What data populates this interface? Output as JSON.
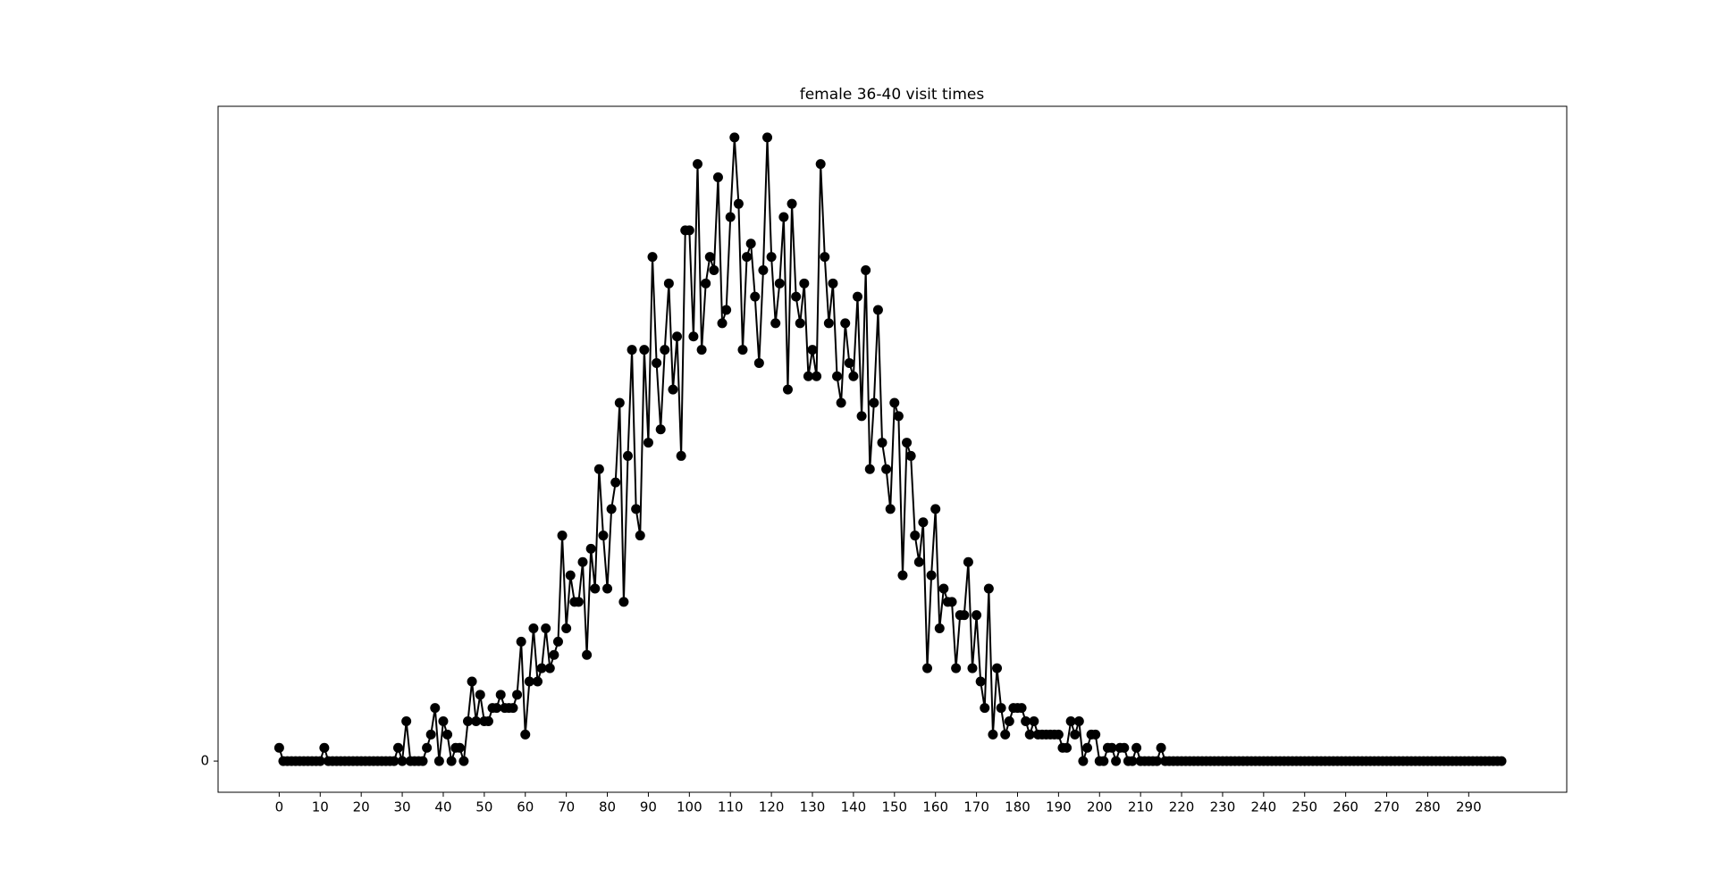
{
  "chart_data": {
    "type": "line",
    "title": "female 36-40 visit times",
    "x": [
      0,
      1,
      2,
      3,
      4,
      5,
      6,
      7,
      8,
      9,
      10,
      11,
      12,
      13,
      14,
      15,
      16,
      17,
      18,
      19,
      20,
      21,
      22,
      23,
      24,
      25,
      26,
      27,
      28,
      29,
      30,
      31,
      32,
      33,
      34,
      35,
      36,
      37,
      38,
      39,
      40,
      41,
      42,
      43,
      44,
      45,
      46,
      47,
      48,
      49,
      50,
      51,
      52,
      53,
      54,
      55,
      56,
      57,
      58,
      59,
      60,
      61,
      62,
      63,
      64,
      65,
      66,
      67,
      68,
      69,
      70,
      71,
      72,
      73,
      74,
      75,
      76,
      77,
      78,
      79,
      80,
      81,
      82,
      83,
      84,
      85,
      86,
      87,
      88,
      89,
      90,
      91,
      92,
      93,
      94,
      95,
      96,
      97,
      98,
      99,
      100,
      101,
      102,
      103,
      104,
      105,
      106,
      107,
      108,
      109,
      110,
      111,
      112,
      113,
      114,
      115,
      116,
      117,
      118,
      119,
      120,
      121,
      122,
      123,
      124,
      125,
      126,
      127,
      128,
      129,
      130,
      131,
      132,
      133,
      134,
      135,
      136,
      137,
      138,
      139,
      140,
      141,
      142,
      143,
      144,
      145,
      146,
      147,
      148,
      149,
      150,
      151,
      152,
      153,
      154,
      155,
      156,
      157,
      158,
      159,
      160,
      161,
      162,
      163,
      164,
      165,
      166,
      167,
      168,
      169,
      170,
      171,
      172,
      173,
      174,
      175,
      176,
      177,
      178,
      179,
      180,
      181,
      182,
      183,
      184,
      185,
      186,
      187,
      188,
      189,
      190,
      191,
      192,
      193,
      194,
      195,
      196,
      197,
      198,
      199,
      200,
      201,
      202,
      203,
      204,
      205,
      206,
      207,
      208,
      209,
      210,
      211,
      212,
      213,
      214,
      215,
      216,
      217,
      218,
      219,
      220,
      221,
      222,
      223,
      224,
      225,
      226,
      227,
      228,
      229,
      230,
      231,
      232,
      233,
      234,
      235,
      236,
      237,
      238,
      239,
      240,
      241,
      242,
      243,
      244,
      245,
      246,
      247,
      248,
      249,
      250,
      251,
      252,
      253,
      254,
      255,
      256,
      257,
      258,
      259,
      260,
      261,
      262,
      263,
      264,
      265,
      266,
      267,
      268,
      269,
      270,
      271,
      272,
      273,
      274,
      275,
      276,
      277,
      278,
      279,
      280,
      281,
      282,
      283,
      284,
      285,
      286,
      287,
      288,
      289,
      290,
      291,
      292,
      293,
      294,
      295,
      296,
      297,
      298
    ],
    "series": [
      {
        "color": "#000000",
        "values": [
          1,
          0,
          0,
          0,
          0,
          0,
          0,
          0,
          0,
          0,
          0,
          1,
          0,
          0,
          0,
          0,
          0,
          0,
          0,
          0,
          0,
          0,
          0,
          0,
          0,
          0,
          0,
          0,
          0,
          1,
          0,
          3,
          0,
          0,
          0,
          0,
          1,
          2,
          4,
          0,
          3,
          2,
          0,
          1,
          1,
          0,
          3,
          6,
          3,
          5,
          3,
          3,
          4,
          4,
          5,
          4,
          4,
          4,
          5,
          9,
          2,
          6,
          10,
          6,
          7,
          10,
          7,
          8,
          9,
          17,
          10,
          14,
          12,
          12,
          15,
          8,
          16,
          13,
          22,
          17,
          13,
          19,
          21,
          27,
          12,
          23,
          31,
          19,
          17,
          31,
          24,
          38,
          30,
          25,
          31,
          36,
          28,
          32,
          23,
          40,
          40,
          32,
          45,
          31,
          36,
          38,
          37,
          44,
          33,
          34,
          41,
          47,
          42,
          31,
          38,
          39,
          35,
          30,
          37,
          47,
          38,
          33,
          36,
          41,
          28,
          42,
          35,
          33,
          36,
          29,
          31,
          29,
          45,
          38,
          33,
          36,
          29,
          27,
          33,
          30,
          29,
          35,
          26,
          37,
          22,
          27,
          34,
          24,
          22,
          19,
          27,
          26,
          14,
          24,
          23,
          17,
          15,
          18,
          7,
          14,
          19,
          10,
          13,
          12,
          12,
          7,
          11,
          11,
          15,
          7,
          11,
          6,
          4,
          13,
          2,
          7,
          4,
          2,
          3,
          4,
          4,
          4,
          3,
          2,
          3,
          2,
          2,
          2,
          2,
          2,
          2,
          1,
          1,
          3,
          2,
          3,
          0,
          1,
          2,
          2,
          0,
          0,
          1,
          1,
          0,
          1,
          1,
          0,
          0,
          1,
          0,
          0,
          0,
          0,
          0,
          1,
          0,
          0,
          0,
          0,
          0,
          0,
          0,
          0,
          0,
          0,
          0,
          0,
          0,
          0,
          0,
          0,
          0,
          0,
          0,
          0,
          0,
          0,
          0,
          0,
          0,
          0,
          0,
          0,
          0,
          0,
          0,
          0,
          0,
          0,
          0,
          0,
          0,
          0,
          0,
          0,
          0,
          0,
          0,
          0,
          0,
          0,
          0,
          0,
          0,
          0,
          0,
          0,
          0,
          0,
          0,
          0,
          0,
          0,
          0,
          0,
          0,
          0,
          0,
          0,
          0,
          0,
          0,
          0,
          0,
          0,
          0,
          0,
          0,
          0,
          0,
          0,
          0,
          0,
          0,
          0,
          0,
          0,
          0
        ]
      }
    ],
    "xlim": [
      -14.9,
      313.9
    ],
    "ylim": [
      -2.35,
      49.35
    ],
    "xticks": [
      0,
      10,
      20,
      30,
      40,
      50,
      60,
      70,
      80,
      90,
      100,
      110,
      120,
      130,
      140,
      150,
      160,
      170,
      180,
      190,
      200,
      210,
      220,
      230,
      240,
      250,
      260,
      270,
      280,
      290
    ],
    "yticks": [
      0
    ],
    "grid": false,
    "markers": true
  }
}
